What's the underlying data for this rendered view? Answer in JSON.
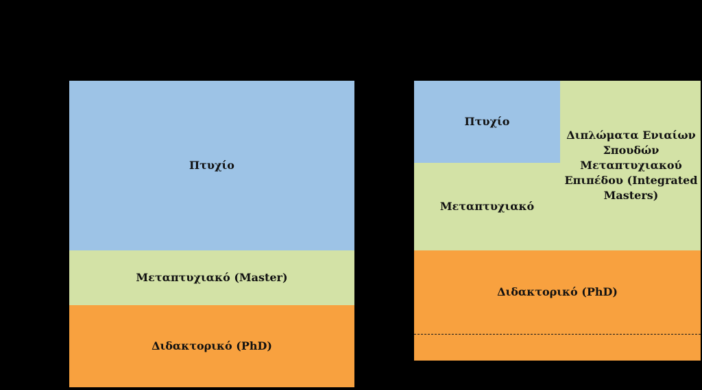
{
  "colors": {
    "background": "#000000",
    "blue": "#9dc3e6",
    "green": "#d3e2a6",
    "orange": "#f8a13f"
  },
  "left_diagram": {
    "degree": "Πτυχίο",
    "master": "Μεταπτυχιακό (Master)",
    "phd": "Διδακτορικό (PhD)"
  },
  "right_diagram": {
    "degree": "Πτυχίο",
    "master": "Μεταπτυχιακό",
    "integrated_masters": "Διπλώματα Ενιαίων\nΣπουδών\nΜεταπτυχιακού\nΕπιπέδου (Integrated\nMasters)",
    "phd": "Διδακτορικό (PhD)"
  }
}
